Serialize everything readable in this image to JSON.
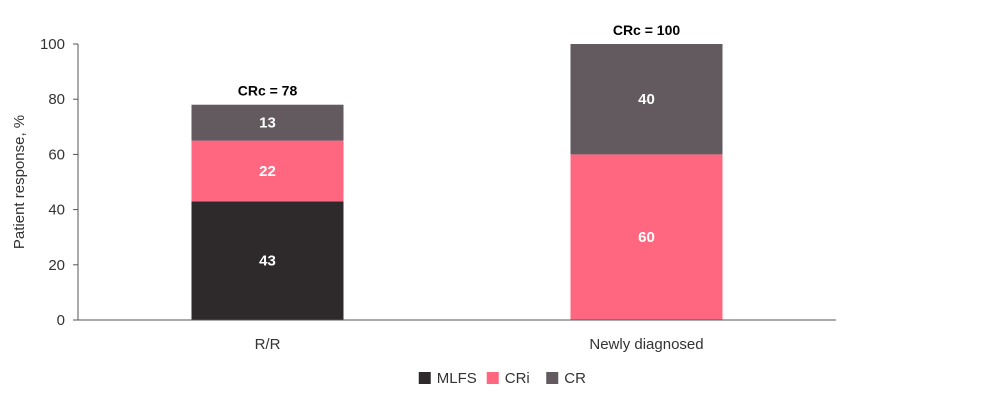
{
  "chart_data": {
    "type": "bar",
    "stacked": true,
    "categories": [
      "R/R",
      "Newly diagnosed"
    ],
    "series": [
      {
        "name": "MLFS",
        "values": [
          43,
          0
        ],
        "color": "#2e292a"
      },
      {
        "name": "CRi",
        "values": [
          22,
          60
        ],
        "color": "#ff6680"
      },
      {
        "name": "CR",
        "values": [
          13,
          40
        ],
        "color": "#625a5e"
      }
    ],
    "totals": [
      "CRc = 78",
      "CRc = 100"
    ],
    "ylabel": "Patient response, %",
    "xlabel": "",
    "ylim": [
      0,
      100
    ],
    "yticks": [
      0,
      20,
      40,
      60,
      80,
      100
    ],
    "grid": false,
    "legend_position": "bottom-center"
  }
}
